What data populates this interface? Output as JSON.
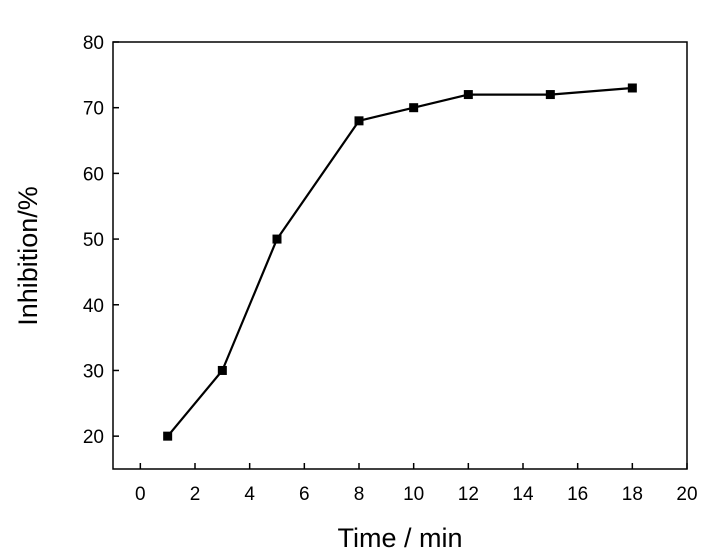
{
  "chart_data": {
    "type": "line",
    "xlabel": "Time / min",
    "ylabel": "Inhibition/%",
    "xlim": [
      -1,
      20
    ],
    "ylim": [
      15,
      80
    ],
    "xticks": [
      0,
      2,
      4,
      6,
      8,
      10,
      12,
      14,
      16,
      18,
      20
    ],
    "yticks": [
      20,
      30,
      40,
      50,
      60,
      70,
      80
    ],
    "grid": false,
    "marker": "square",
    "line_color": "#000000",
    "x": [
      1,
      3,
      5,
      8,
      10,
      12,
      15,
      18
    ],
    "y": [
      20,
      30,
      50,
      68,
      70,
      72,
      72,
      73
    ]
  }
}
